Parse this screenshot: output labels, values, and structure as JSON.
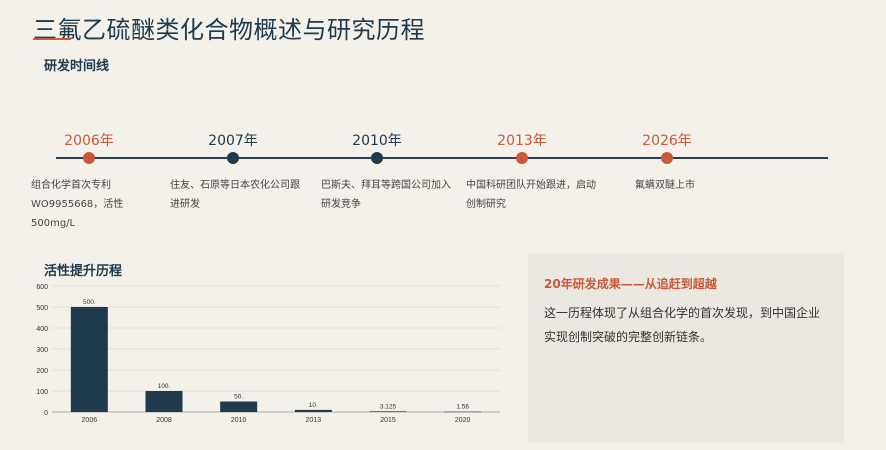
{
  "page": {
    "title": "三氟乙硫醚类化合物概述与研究历程"
  },
  "timeline": {
    "heading": "研发时间线",
    "events": [
      {
        "year": "2006年",
        "desc": "组合化学首次专利\nWO9955668，活性500mg/L",
        "color": "#c85a3a"
      },
      {
        "year": "2007年",
        "desc": "住友、石原等日本农化公司跟\n进研发",
        "color": "#1e3a4c"
      },
      {
        "year": "2010年",
        "desc": "巴斯夫、拜耳等跨国公司加入\n研发竞争",
        "color": "#1e3a4c"
      },
      {
        "year": "2013年",
        "desc": "中国科研团队开始跟进，启动\n创制研究",
        "color": "#c85a3a"
      },
      {
        "year": "2026年",
        "desc": "氟螨双醚上市",
        "color": "#c85a3a"
      }
    ]
  },
  "chart_section": {
    "heading": "活性提升历程"
  },
  "chart_data": {
    "type": "bar",
    "categories": [
      "2006",
      "2008",
      "2010",
      "2013",
      "2015",
      "2020"
    ],
    "values": [
      500,
      100,
      50,
      10,
      3.125,
      1.56
    ],
    "value_labels": [
      "500.",
      "100.",
      "50.",
      "10.",
      "3.125",
      "1.56"
    ],
    "ylim": [
      0,
      600
    ],
    "yticks": [
      0,
      100,
      200,
      300,
      400,
      500,
      600
    ],
    "grid": true,
    "bar_color": "#1e3a4c"
  },
  "panel": {
    "title": "20年研发成果——从追赶到超越",
    "body": "这一历程体现了从组合化学的首次发现，到中国企业实现创制突破的完整创新链条。"
  }
}
